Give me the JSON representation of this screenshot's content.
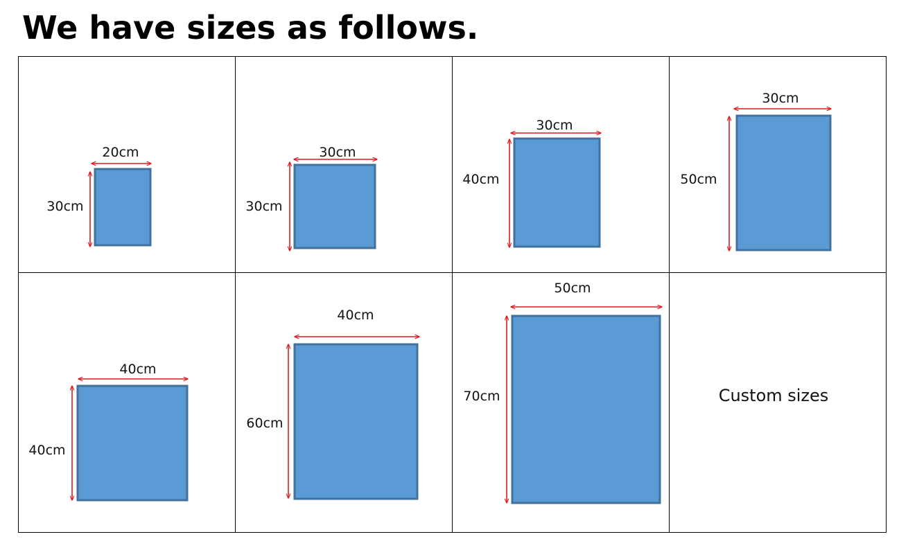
{
  "title": "We have sizes as follows.",
  "colors": {
    "canvas_fill": "#5b9bd5",
    "canvas_stroke": "#41719c",
    "arrow": "#e0191e",
    "grid_line": "#000000"
  },
  "sizes": [
    {
      "width_label": "20cm",
      "height_label": "30cm"
    },
    {
      "width_label": "30cm",
      "height_label": "30cm"
    },
    {
      "width_label": "30cm",
      "height_label": "40cm"
    },
    {
      "width_label": "30cm",
      "height_label": "50cm"
    },
    {
      "width_label": "40cm",
      "height_label": "40cm"
    },
    {
      "width_label": "40cm",
      "height_label": "60cm"
    },
    {
      "width_label": "50cm",
      "height_label": "70cm"
    }
  ],
  "custom_label": "Custom sizes"
}
